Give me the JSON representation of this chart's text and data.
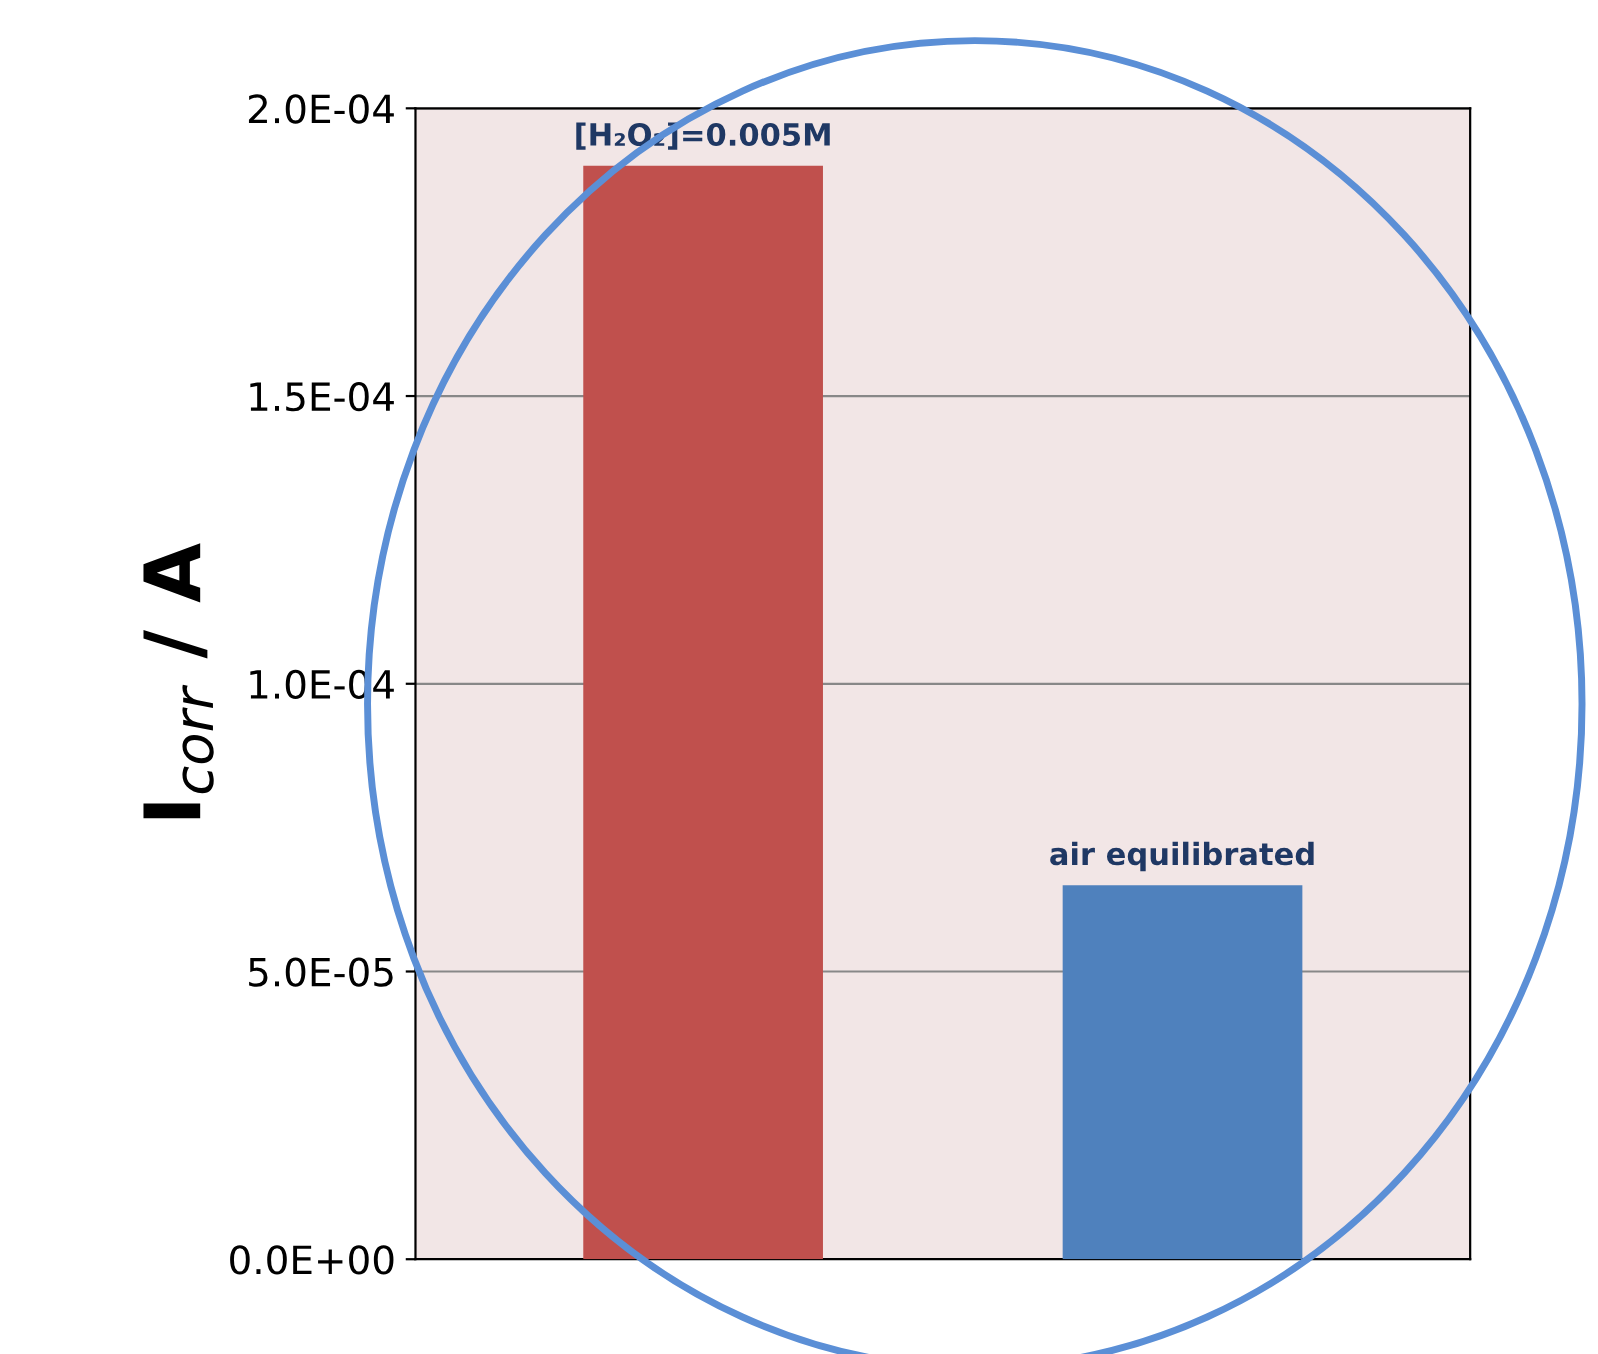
{
  "chart_data": {
    "type": "bar",
    "ylabel": "I$_{corr}$ / A",
    "categories": [
      null,
      null
    ],
    "values": [
      0.00019,
      6.5e-05
    ],
    "colors": [
      "#c0504d",
      "#4f81bd"
    ],
    "annotations": [
      {
        "text": "[H₂O₂]=0.005M",
        "y": 0.00019
      },
      {
        "text": "air equilibrated",
        "y": 6.5e-05
      }
    ],
    "ylim": [
      0,
      0.0002
    ],
    "yticks": [
      {
        "value": 0,
        "label": "0.0E+00"
      },
      {
        "value": 5e-05,
        "label": "5.0E-05"
      },
      {
        "value": 0.0001,
        "label": "1.0E-04"
      },
      {
        "value": 0.00015,
        "label": "1.5E-04"
      },
      {
        "value": 0.0002,
        "label": "2.0E-04"
      }
    ],
    "grid": "y"
  }
}
